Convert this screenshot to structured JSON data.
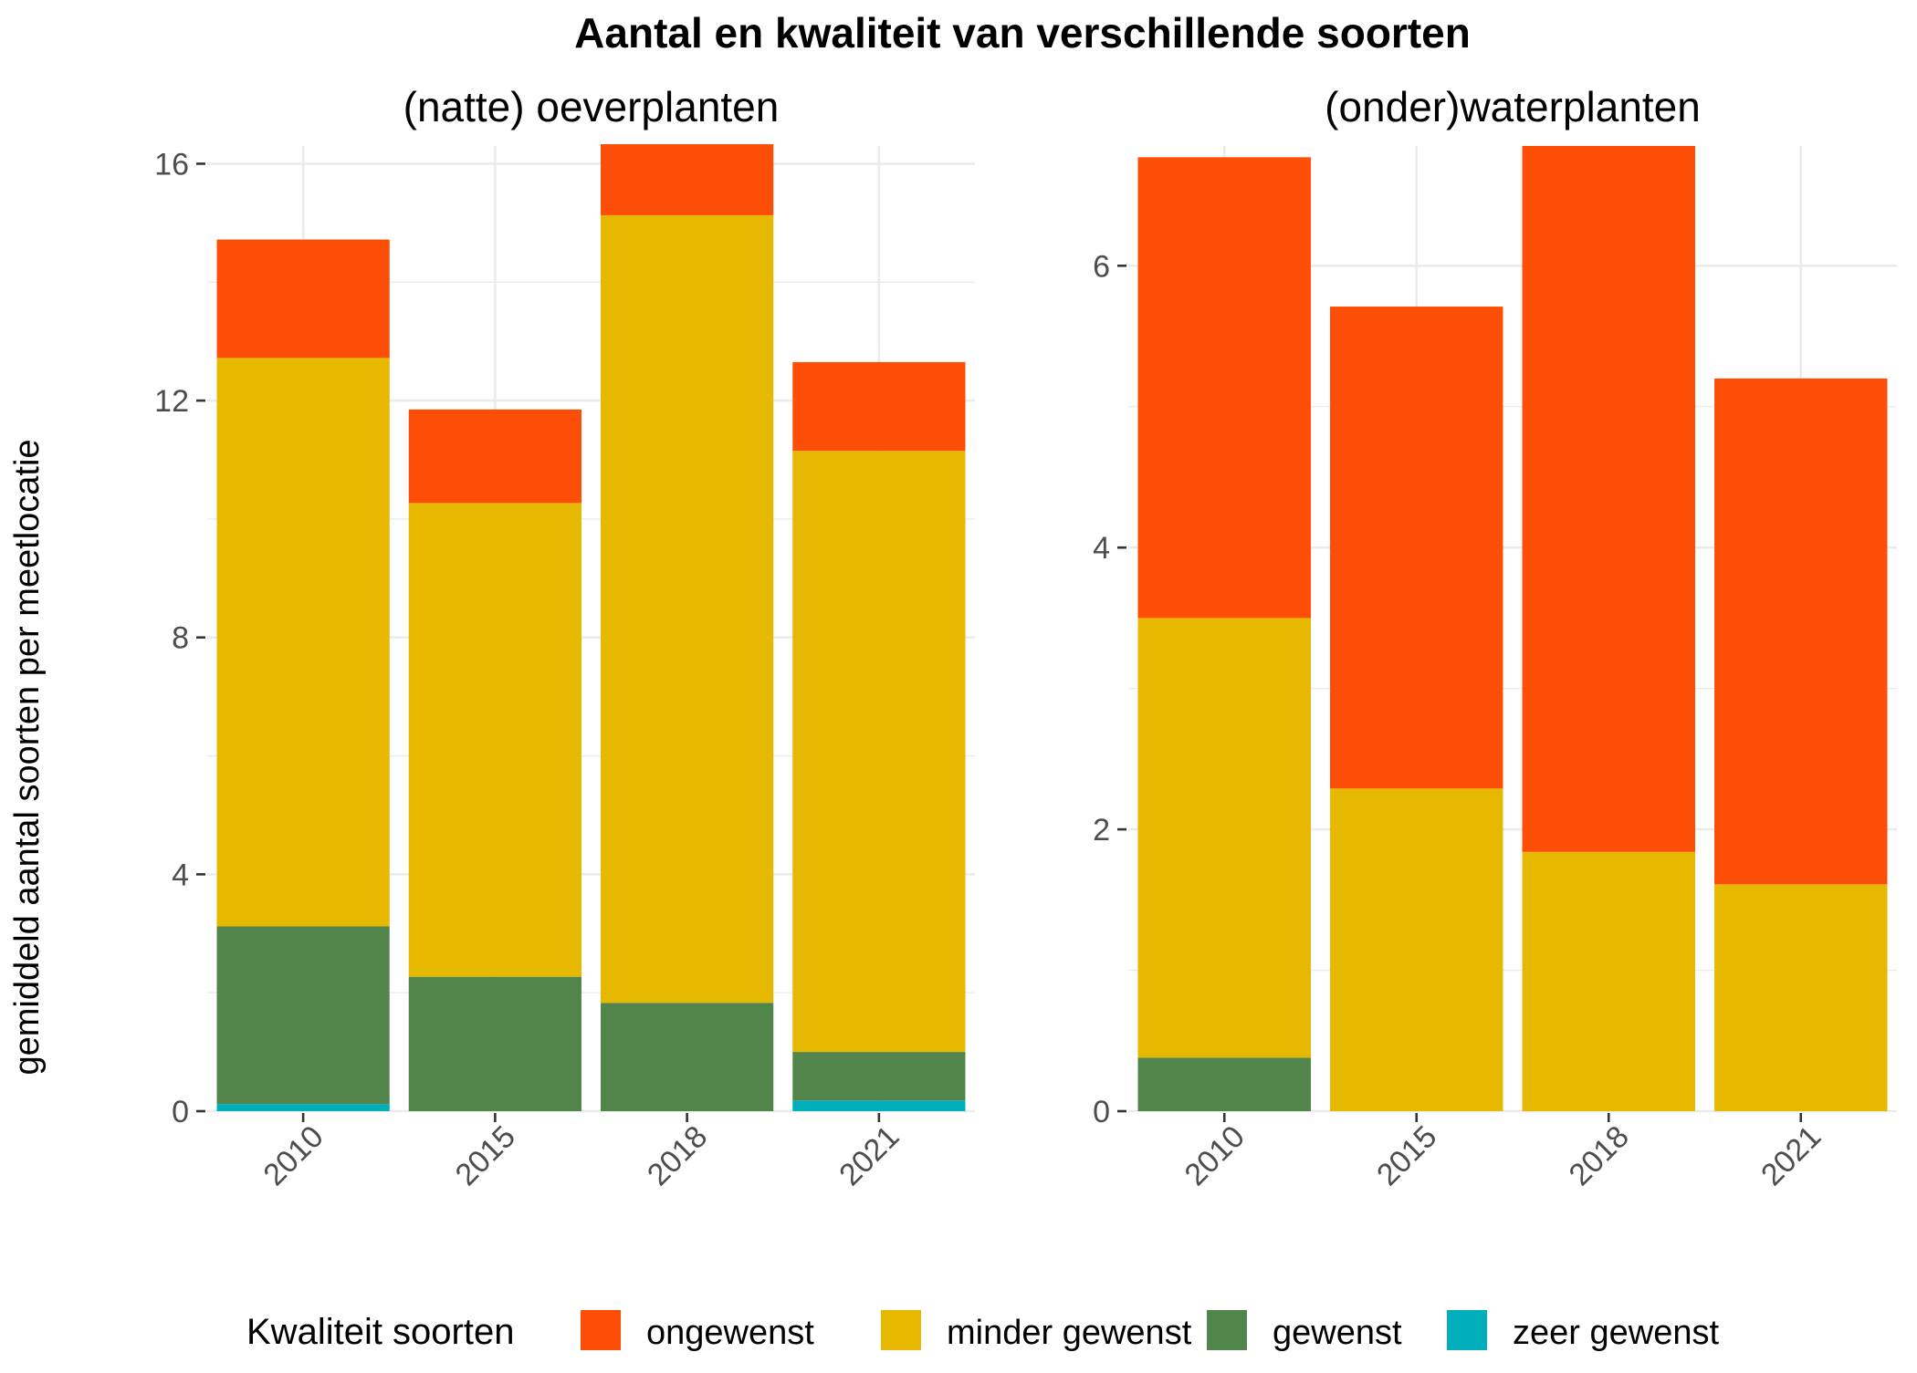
{
  "chart_data": {
    "type": "bar",
    "stacked": true,
    "title": "Aantal en kwaliteit van verschillende soorten",
    "ylabel": "gemiddeld aantal soorten per meetlocatie",
    "xlabel": "",
    "categories": [
      "2010",
      "2015",
      "2018",
      "2021"
    ],
    "legend": {
      "title": "Kwaliteit soorten",
      "position": "bottom",
      "entries": [
        "ongewenst",
        "minder gewenst",
        "gewenst",
        "zeer gewenst"
      ]
    },
    "colors": {
      "ongewenst": "#FC4E07",
      "minder gewenst": "#E7B800",
      "gewenst": "#52854C",
      "zeer gewenst": "#00AFBB"
    },
    "grid": true,
    "panels": [
      {
        "title": "(natte) oeverplanten",
        "ylim": [
          0,
          16.3
        ],
        "yticks": [
          0,
          4,
          8,
          12,
          16
        ],
        "series": [
          {
            "name": "zeer gewenst",
            "values": [
              0.12,
              0.0,
              0.0,
              0.18
            ]
          },
          {
            "name": "gewenst",
            "values": [
              3.0,
              2.27,
              1.83,
              0.82
            ]
          },
          {
            "name": "minder gewenst",
            "values": [
              9.6,
              8.0,
              13.3,
              10.15
            ]
          },
          {
            "name": "ongewenst",
            "values": [
              2.0,
              1.58,
              1.2,
              1.5
            ]
          }
        ]
      },
      {
        "title": "(onder)waterplanten",
        "ylim": [
          0,
          6.85
        ],
        "yticks": [
          0,
          2,
          4,
          6
        ],
        "series": [
          {
            "name": "zeer gewenst",
            "values": [
              0.0,
              0.0,
              0.0,
              0.0
            ]
          },
          {
            "name": "gewenst",
            "values": [
              0.38,
              0.0,
              0.0,
              0.0
            ]
          },
          {
            "name": "minder gewenst",
            "values": [
              3.12,
              2.29,
              1.84,
              1.61
            ]
          },
          {
            "name": "ongewenst",
            "values": [
              3.27,
              3.42,
              5.01,
              3.59
            ]
          }
        ]
      }
    ]
  }
}
